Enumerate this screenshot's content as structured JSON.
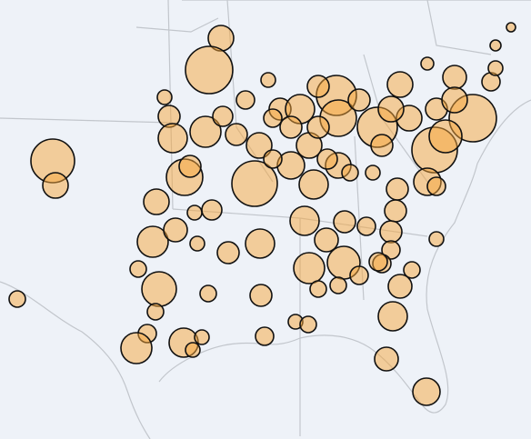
{
  "chart_data": {
    "type": "bubble",
    "x": [
      -92.85,
      -93.5,
      -102.1,
      -101.95,
      -95.95,
      -95.7,
      -95.5,
      -94.85,
      -94.55,
      -93.7,
      -92.75,
      -91,
      -89,
      -87.75,
      -86.4,
      -90.25,
      -89.6,
      -86.5,
      -86.4,
      -84.25,
      -83,
      -81.5,
      -80,
      -79,
      -81.1,
      -77.75,
      -76.9,
      -78,
      -81.5,
      -83.15,
      -83.25,
      -83.5,
      -83.5,
      -84,
      -83,
      -83.4,
      -83.75,
      -81.55,
      -82.35,
      -81,
      -96.4,
      -94.3,
      -93.35,
      -96.6,
      -95.35,
      -94.15,
      -92.45,
      -90.7,
      -88.25,
      -87.05,
      -86.05,
      -84.85,
      -88,
      -86.1,
      -85.25,
      -87.5,
      -86.4,
      -84.2,
      -97.4,
      -96.25,
      -96.45,
      -93.55,
      -90.65,
      -96.9,
      -97.5,
      -94.9,
      -94.4,
      -93.9,
      -90.45,
      -88.75,
      -88.05,
      -104.05,
      -92,
      -90.75,
      -90,
      -88,
      -87,
      -85.75,
      -84.5,
      -84,
      -82.5,
      -81,
      -80,
      -80.5,
      -88.5,
      -87.5,
      -85.25,
      -90,
      -89,
      -91.5,
      -87.5,
      -83.5,
      -77.75,
      -81
    ],
    "y": [
      41.82,
      40.42,
      36.42,
      35.34,
      39.22,
      38.38,
      37.42,
      35.7,
      36.18,
      37.7,
      38.38,
      35.42,
      36.22,
      35.38,
      36.22,
      39.98,
      38.7,
      39.3,
      38.3,
      37.9,
      39.78,
      40.7,
      40.1,
      38.3,
      36.9,
      41.5,
      42.3,
      39.9,
      35.5,
      35.18,
      34.22,
      33.3,
      32.5,
      31.9,
      30.9,
      29.58,
      27.7,
      26.26,
      31.62,
      32.98,
      34.62,
      34.14,
      34.26,
      32.86,
      33.38,
      32.78,
      32.38,
      32.78,
      33.78,
      32.94,
      33.74,
      33.54,
      31.7,
      31.94,
      31.38,
      30.78,
      30.94,
      31.98,
      31.66,
      30.78,
      29.78,
      30.58,
      30.5,
      28.82,
      28.18,
      28.42,
      28.1,
      28.66,
      28.7,
      29.34,
      29.22,
      30.34,
      37.58,
      37.1,
      36.5,
      37.1,
      36.5,
      35.9,
      35.9,
      37.1,
      38.3,
      38.7,
      39.1,
      37.5,
      38.7,
      37.9,
      39.1,
      38.3,
      37.9,
      39.1,
      39.7,
      38.7,
      40.5,
      35.3
    ],
    "sizes": [
      14,
      26,
      24,
      14,
      8,
      12,
      16,
      20,
      12,
      17,
      11,
      25,
      15,
      16,
      14,
      8,
      12,
      22,
      20,
      22,
      14,
      7,
      13,
      26,
      25,
      6,
      5,
      10,
      15,
      12,
      12,
      12,
      10,
      10,
      13,
      16,
      13,
      15,
      9,
      8,
      14,
      8,
      11,
      17,
      13,
      8,
      12,
      16,
      16,
      13,
      12,
      10,
      17,
      18,
      10,
      9,
      9,
      10,
      9,
      19,
      9,
      9,
      12,
      10,
      17,
      16,
      8,
      8,
      10,
      8,
      9,
      9,
      12,
      14,
      10,
      14,
      11,
      9,
      8,
      12,
      14,
      12,
      14,
      18,
      16,
      12,
      12,
      10,
      12,
      10,
      12,
      14,
      8,
      10
    ],
    "xlim": [
      -105,
      -75.8
    ],
    "ylim": [
      24.18,
      43.5
    ],
    "color": "rgba(245,166,60,0.5)",
    "edge_color": "#111111"
  }
}
